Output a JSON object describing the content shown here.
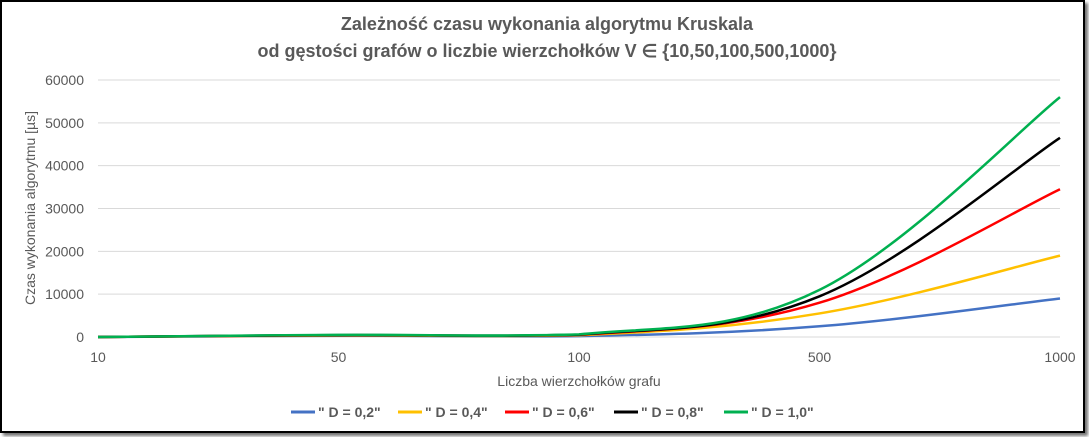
{
  "chart_data": {
    "type": "line",
    "title_line1": "Zależność czasu wykonania algorytmu Kruskala",
    "title_line2": "od gęstości grafów o liczbie wierzchołków V ∈ {10,50,100,500,1000}",
    "xlabel": "Liczba wierzchołków grafu",
    "ylabel": "Czas wykonania algorytmu [µs]",
    "categories": [
      "10",
      "50",
      "100",
      "500",
      "1000"
    ],
    "ylim": [
      0,
      60000
    ],
    "yticks": [
      "0",
      "10000",
      "20000",
      "30000",
      "40000",
      "50000",
      "60000"
    ],
    "grid": true,
    "legend_position": "bottom",
    "series": [
      {
        "name": "\" D = 0,2\"",
        "color": "#4472c4",
        "values": [
          0,
          300,
          200,
          2500,
          9000
        ]
      },
      {
        "name": "\" D = 0,4\"",
        "color": "#ffc000",
        "values": [
          0,
          350,
          400,
          5500,
          19000
        ]
      },
      {
        "name": "\" D = 0,6\"",
        "color": "#ff0000",
        "values": [
          0,
          400,
          500,
          8000,
          34500
        ]
      },
      {
        "name": "\" D = 0,8\"",
        "color": "#000000",
        "values": [
          0,
          450,
          550,
          9500,
          46500
        ]
      },
      {
        "name": "\" D = 1,0\"",
        "color": "#00b050",
        "values": [
          0,
          500,
          600,
          11000,
          56000
        ]
      }
    ]
  }
}
